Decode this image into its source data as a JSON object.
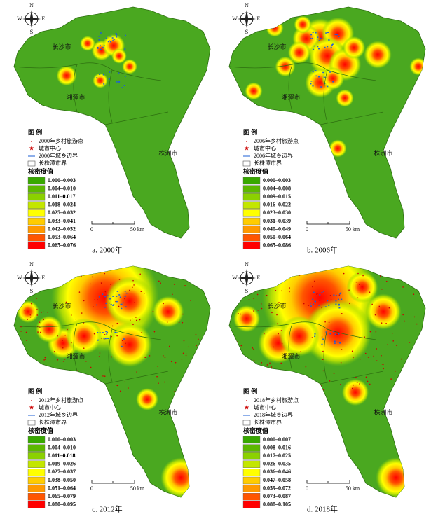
{
  "compass": {
    "n": "N",
    "s": "S",
    "w": "W",
    "e": "E"
  },
  "map_labels": {
    "changsha": "长沙市",
    "xiangtan": "湘潭市",
    "zhuzhou": "株洲市"
  },
  "class_colors": [
    "#38a800",
    "#5cb800",
    "#8bd100",
    "#c3e600",
    "#ffff00",
    "#ffcc00",
    "#ff9900",
    "#ff5500",
    "#ff0000"
  ],
  "panels": [
    {
      "caption": "a. 2000年",
      "legend_title": "图 例",
      "legend_items": [
        "2000年乡村旅游点",
        "城市中心",
        "2000年城乡边界",
        "长株潭市界"
      ],
      "density_title": "核密度值",
      "classes": [
        "0.000–0.003",
        "0.004–0.010",
        "0.011–0.017",
        "0.018–0.024",
        "0.025–0.032",
        "0.033–0.041",
        "0.042–0.052",
        "0.053–0.064",
        "0.065–0.076"
      ],
      "scale": [
        "0",
        "50 km"
      ]
    },
    {
      "caption": "b. 2006年",
      "legend_title": "图 例",
      "legend_items": [
        "2006年乡村旅游点",
        "城市中心",
        "2006年城乡边界",
        "长株潭市界"
      ],
      "density_title": "核密度值",
      "classes": [
        "0.000–0.003",
        "0.004–0.008",
        "0.009–0.015",
        "0.016–0.022",
        "0.023–0.030",
        "0.031–0.039",
        "0.040–0.049",
        "0.050–0.064",
        "0.065–0.086"
      ],
      "scale": [
        "0",
        "50 km"
      ]
    },
    {
      "caption": "c. 2012年",
      "legend_title": "图 例",
      "legend_items": [
        "2012年乡村旅游点",
        "城市中心",
        "2012年城乡边界",
        "长株潭市界"
      ],
      "density_title": "核密度值",
      "classes": [
        "0.000–0.003",
        "0.004–0.010",
        "0.011–0.018",
        "0.019–0.026",
        "0.027–0.037",
        "0.038–0.050",
        "0.051–0.064",
        "0.065–0.079",
        "0.080–0.095"
      ],
      "scale": [
        "0",
        "50 km"
      ]
    },
    {
      "caption": "d. 2018年",
      "legend_title": "图 例",
      "legend_items": [
        "2018年乡村旅游点",
        "城市中心",
        "2018年城乡边界",
        "长株潭市界"
      ],
      "density_title": "核密度值",
      "classes": [
        "0.000–0.007",
        "0.008–0.016",
        "0.017–0.025",
        "0.026–0.035",
        "0.036–0.046",
        "0.047–0.058",
        "0.059–0.072",
        "0.073–0.087",
        "0.088–0.105"
      ],
      "scale": [
        "0",
        "50 km"
      ]
    }
  ]
}
